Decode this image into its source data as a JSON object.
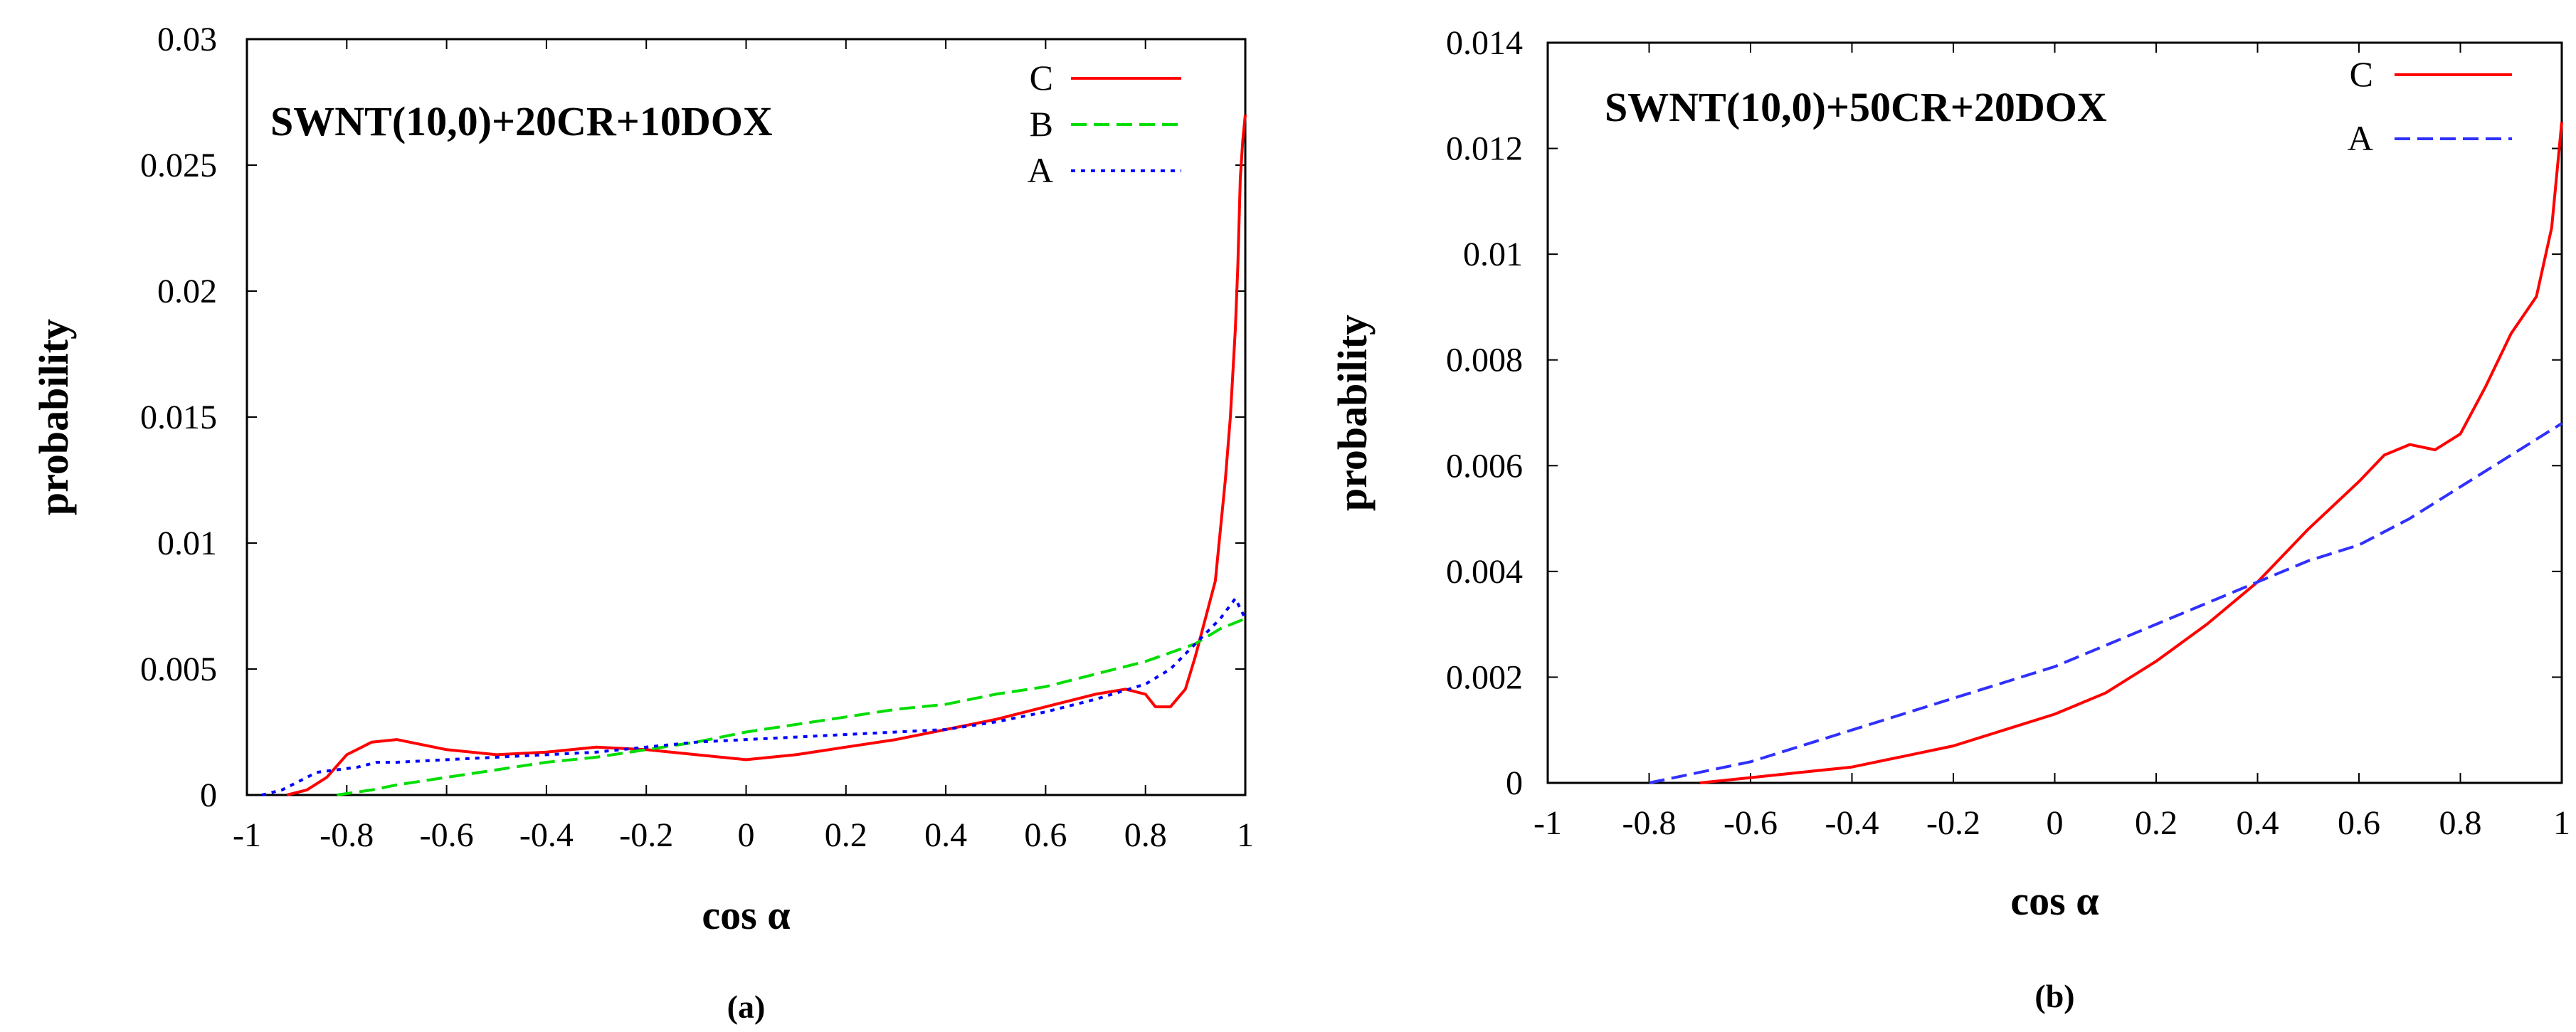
{
  "chart_data": [
    {
      "type": "line",
      "title": "SWNT(10,0)+20CR+10DOX",
      "xlabel": "cos α",
      "ylabel": "probability",
      "caption": "(a)",
      "xlim": [
        -1,
        1
      ],
      "ylim": [
        0,
        0.03
      ],
      "xticks": [
        "-1",
        "-0.8",
        "-0.6",
        "-0.4",
        "-0.2",
        "0",
        "0.2",
        "0.4",
        "0.6",
        "0.8",
        "1"
      ],
      "yticks": [
        "0",
        "0.005",
        "0.01",
        "0.015",
        "0.02",
        "0.025",
        "0.03"
      ],
      "legend_position": "top-right",
      "series": [
        {
          "name": "C",
          "color": "#ff0000",
          "dash": "solid",
          "x": [
            -0.92,
            -0.88,
            -0.84,
            -0.8,
            -0.75,
            -0.7,
            -0.65,
            -0.6,
            -0.5,
            -0.4,
            -0.3,
            -0.2,
            -0.1,
            0,
            0.1,
            0.2,
            0.3,
            0.4,
            0.5,
            0.6,
            0.7,
            0.76,
            0.8,
            0.82,
            0.85,
            0.88,
            0.9,
            0.92,
            0.94,
            0.95,
            0.96,
            0.97,
            0.98,
            0.985,
            0.99,
            0.995,
            1.0
          ],
          "y": [
            0,
            0.0002,
            0.0007,
            0.0016,
            0.0021,
            0.0022,
            0.002,
            0.0018,
            0.0016,
            0.0017,
            0.0019,
            0.0018,
            0.0016,
            0.0014,
            0.0016,
            0.0019,
            0.0022,
            0.0026,
            0.003,
            0.0035,
            0.004,
            0.0042,
            0.004,
            0.0035,
            0.0035,
            0.0042,
            0.0055,
            0.007,
            0.0085,
            0.0105,
            0.0125,
            0.015,
            0.0185,
            0.021,
            0.0245,
            0.026,
            0.027
          ]
        },
        {
          "name": "B",
          "color": "#00dd00",
          "dash": "dashed",
          "x": [
            -0.82,
            -0.75,
            -0.7,
            -0.6,
            -0.5,
            -0.4,
            -0.3,
            -0.2,
            -0.1,
            0,
            0.1,
            0.2,
            0.3,
            0.4,
            0.5,
            0.6,
            0.7,
            0.8,
            0.9,
            0.95,
            1.0
          ],
          "y": [
            0,
            0.0002,
            0.0004,
            0.0007,
            0.001,
            0.0013,
            0.0015,
            0.0018,
            0.0021,
            0.0025,
            0.0028,
            0.0031,
            0.0034,
            0.0036,
            0.004,
            0.0043,
            0.0048,
            0.0053,
            0.006,
            0.0066,
            0.007
          ]
        },
        {
          "name": "A",
          "color": "#0000ff",
          "dash": "dotted",
          "x": [
            -0.97,
            -0.93,
            -0.89,
            -0.86,
            -0.82,
            -0.78,
            -0.74,
            -0.7,
            -0.6,
            -0.5,
            -0.4,
            -0.3,
            -0.2,
            -0.1,
            0,
            0.1,
            0.2,
            0.3,
            0.4,
            0.5,
            0.6,
            0.7,
            0.8,
            0.85,
            0.9,
            0.95,
            0.98,
            1.0
          ],
          "y": [
            0,
            0.0002,
            0.0006,
            0.0009,
            0.001,
            0.0011,
            0.0013,
            0.0013,
            0.0014,
            0.0015,
            0.0016,
            0.0017,
            0.0019,
            0.0021,
            0.0022,
            0.0023,
            0.0024,
            0.0025,
            0.0026,
            0.0029,
            0.0033,
            0.0038,
            0.0044,
            0.005,
            0.006,
            0.007,
            0.0078,
            0.007
          ]
        }
      ]
    },
    {
      "type": "line",
      "title": "SWNT(10,0)+50CR+20DOX",
      "xlabel": "cos α",
      "ylabel": "probability",
      "caption": "(b)",
      "xlim": [
        -1,
        1
      ],
      "ylim": [
        0,
        0.014
      ],
      "xticks": [
        "-1",
        "-0.8",
        "-0.6",
        "-0.4",
        "-0.2",
        "0",
        "0.2",
        "0.4",
        "0.6",
        "0.8",
        "1"
      ],
      "yticks": [
        "0",
        "0.002",
        "0.004",
        "0.006",
        "0.008",
        "0.01",
        "0.012",
        "0.014"
      ],
      "legend_position": "top-right",
      "series": [
        {
          "name": "C",
          "color": "#ff0000",
          "dash": "solid",
          "x": [
            -0.7,
            -0.6,
            -0.5,
            -0.4,
            -0.3,
            -0.2,
            -0.1,
            0,
            0.1,
            0.2,
            0.3,
            0.4,
            0.5,
            0.6,
            0.65,
            0.7,
            0.75,
            0.8,
            0.85,
            0.9,
            0.95,
            0.98,
            1.0
          ],
          "y": [
            0,
            0.0001,
            0.0002,
            0.0003,
            0.0005,
            0.0007,
            0.001,
            0.0013,
            0.0017,
            0.0023,
            0.003,
            0.0038,
            0.0048,
            0.0057,
            0.0062,
            0.0064,
            0.0063,
            0.0066,
            0.0075,
            0.0085,
            0.0092,
            0.0105,
            0.0125
          ]
        },
        {
          "name": "A",
          "color": "#3030ff",
          "dash": "dashed",
          "x": [
            -0.8,
            -0.7,
            -0.6,
            -0.5,
            -0.4,
            -0.3,
            -0.2,
            -0.1,
            0,
            0.1,
            0.2,
            0.3,
            0.4,
            0.5,
            0.6,
            0.7,
            0.8,
            0.9,
            1.0
          ],
          "y": [
            0,
            0.0002,
            0.0004,
            0.0007,
            0.001,
            0.0013,
            0.0016,
            0.0019,
            0.0022,
            0.0026,
            0.003,
            0.0034,
            0.0038,
            0.0042,
            0.0045,
            0.005,
            0.0056,
            0.0062,
            0.0068
          ]
        }
      ]
    }
  ]
}
